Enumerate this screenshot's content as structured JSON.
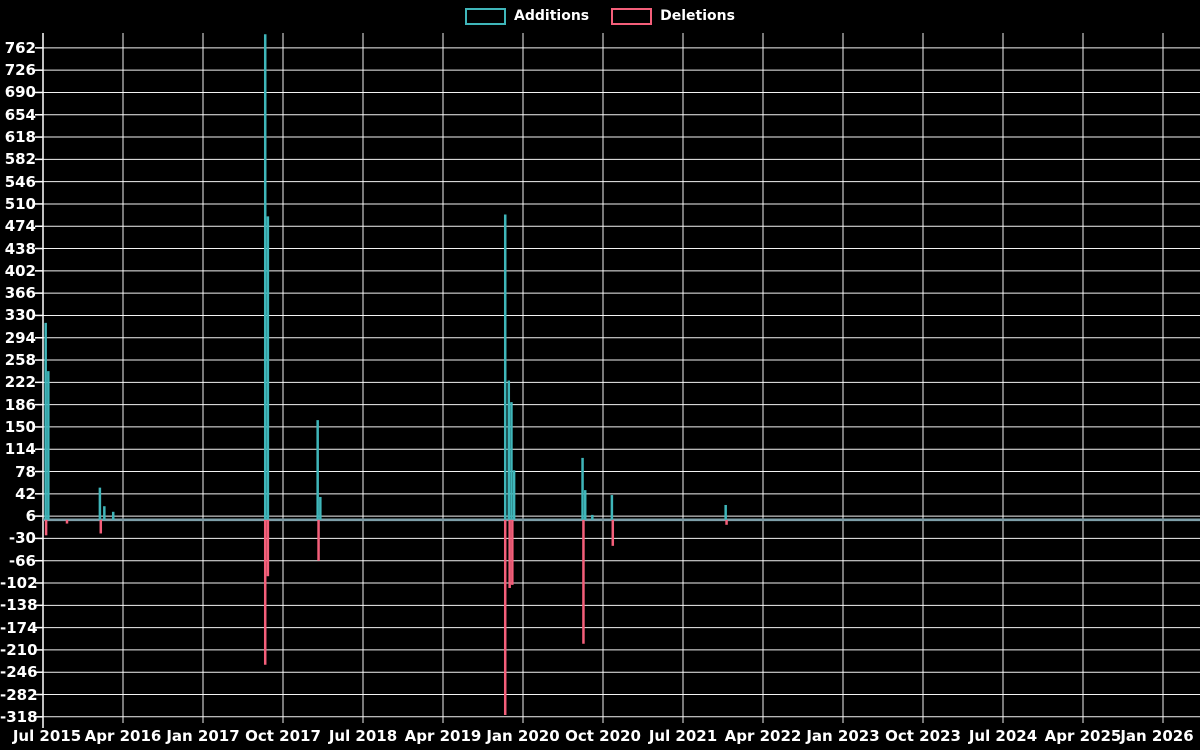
{
  "page": {
    "background_color": "#000000",
    "grid_color": "#ffffff",
    "text_color": "#ffffff"
  },
  "legend": {
    "items": [
      {
        "label": "Additions",
        "color": "#3fb6ba"
      },
      {
        "label": "Deletions",
        "color": "#f45f7a"
      }
    ]
  },
  "chart_data": {
    "type": "line",
    "title": "",
    "xlabel": "",
    "ylabel": "",
    "legend_position": "top-center",
    "grid": true,
    "baseline_value": 0,
    "baseline_color": "#7e9fa9",
    "y_axis": {
      "min": -328,
      "max": 786,
      "tick_step": 36,
      "ticks": [
        762,
        726,
        690,
        654,
        618,
        582,
        546,
        510,
        474,
        438,
        402,
        366,
        330,
        294,
        258,
        222,
        186,
        150,
        114,
        78,
        42,
        6,
        -30,
        -66,
        -102,
        -138,
        -174,
        -210,
        -246,
        -282,
        -318
      ]
    },
    "x_axis": {
      "start_label": "Jul 2015",
      "months_per_tick": 9,
      "total_months": 130.2,
      "tick_labels": [
        "Jul 2015",
        "Apr 2016",
        "Jan 2017",
        "Oct 2017",
        "Jul 2018",
        "Apr 2019",
        "Jan 2020",
        "Oct 2020",
        "Jul 2021",
        "Apr 2022",
        "Jan 2023",
        "Oct 2023",
        "Jul 2024",
        "Apr 2025",
        "Jan 2026"
      ]
    },
    "series": [
      {
        "name": "Additions",
        "color": "#3fb6ba",
        "events": [
          {
            "month": 0.3,
            "value": 318
          },
          {
            "month": 0.6,
            "value": 240
          },
          {
            "month": 6.4,
            "value": 52
          },
          {
            "month": 6.9,
            "value": 22
          },
          {
            "month": 7.9,
            "value": 13
          },
          {
            "month": 25.0,
            "value": 784
          },
          {
            "month": 25.3,
            "value": 490
          },
          {
            "month": 30.9,
            "value": 161
          },
          {
            "month": 31.2,
            "value": 37
          },
          {
            "month": 52.0,
            "value": 493
          },
          {
            "month": 52.4,
            "value": 225
          },
          {
            "month": 52.7,
            "value": 190
          },
          {
            "month": 53.0,
            "value": 80
          },
          {
            "month": 60.7,
            "value": 100
          },
          {
            "month": 61.0,
            "value": 48
          },
          {
            "month": 61.8,
            "value": 8
          },
          {
            "month": 64.0,
            "value": 40
          },
          {
            "month": 76.8,
            "value": 24
          }
        ]
      },
      {
        "name": "Deletions",
        "color": "#f45f7a",
        "events": [
          {
            "month": 0.35,
            "value": -25
          },
          {
            "month": 2.7,
            "value": -6
          },
          {
            "month": 6.5,
            "value": -22
          },
          {
            "month": 25.0,
            "value": -234
          },
          {
            "month": 25.3,
            "value": -91
          },
          {
            "month": 31.0,
            "value": -66
          },
          {
            "month": 52.0,
            "value": -315
          },
          {
            "month": 52.5,
            "value": -110
          },
          {
            "month": 52.8,
            "value": -105
          },
          {
            "month": 60.8,
            "value": -200
          },
          {
            "month": 64.1,
            "value": -42
          },
          {
            "month": 76.9,
            "value": -8
          }
        ]
      }
    ]
  }
}
